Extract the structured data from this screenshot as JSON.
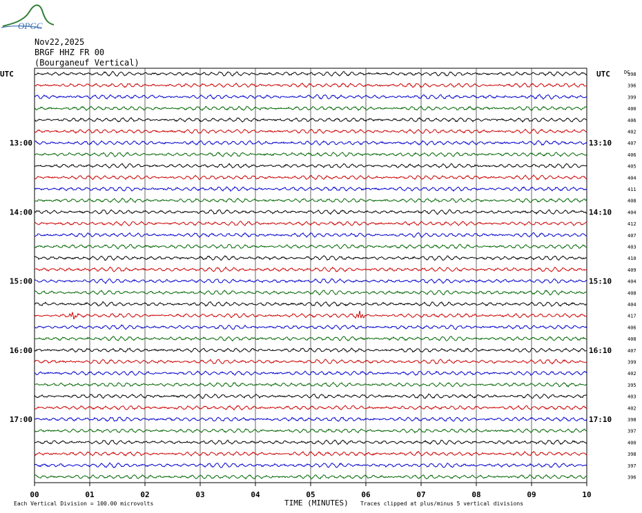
{
  "logo": {
    "text": "OPGC",
    "color": "#2e7d32",
    "text_color": "#3a6fb0"
  },
  "header": {
    "date": "Nov22,2025",
    "station": "BRGF HHZ FR 00",
    "location": "(Bourganeuf Vertical)"
  },
  "axis": {
    "left_tz": "UTC",
    "right_tz": "UTC",
    "dc_label": "DC",
    "xlabel": "TIME (MINUTES)",
    "footer_left": "Each Vertical Division =  100.00 microvolts",
    "footer_right": "Traces clipped at plus/minus 5 vertical divisions"
  },
  "chart_data": {
    "type": "line",
    "title": "BRGF HHZ FR 00 (Bourganeuf Vertical)",
    "xlabel": "TIME (MINUTES)",
    "xlim": [
      0,
      10
    ],
    "x_ticks": [
      "00",
      "01",
      "02",
      "03",
      "04",
      "05",
      "06",
      "07",
      "08",
      "09",
      "10"
    ],
    "left_hour_labels": [
      {
        "row": 6,
        "label": "13:00"
      },
      {
        "row": 12,
        "label": "14:00"
      },
      {
        "row": 18,
        "label": "15:00"
      },
      {
        "row": 24,
        "label": "16:00"
      },
      {
        "row": 30,
        "label": "17:00"
      }
    ],
    "right_hour_labels": [
      {
        "row": 6,
        "label": "13:10"
      },
      {
        "row": 12,
        "label": "14:10"
      },
      {
        "row": 18,
        "label": "15:10"
      },
      {
        "row": 24,
        "label": "16:10"
      },
      {
        "row": 30,
        "label": "17:10"
      }
    ],
    "trace_colors": [
      "#000000",
      "#cc0000",
      "#0000cc",
      "#006600"
    ],
    "dc_offsets": [
      398,
      396,
      399,
      400,
      406,
      402,
      407,
      406,
      405,
      404,
      411,
      408,
      404,
      412,
      407,
      403,
      410,
      409,
      404,
      408,
      404,
      417,
      406,
      408,
      407,
      399,
      402,
      395,
      403,
      402,
      398,
      397,
      400,
      398,
      397,
      396
    ],
    "events": [
      {
        "row": 21,
        "minute": 0.7
      },
      {
        "row": 21,
        "minute": 5.9
      }
    ]
  }
}
